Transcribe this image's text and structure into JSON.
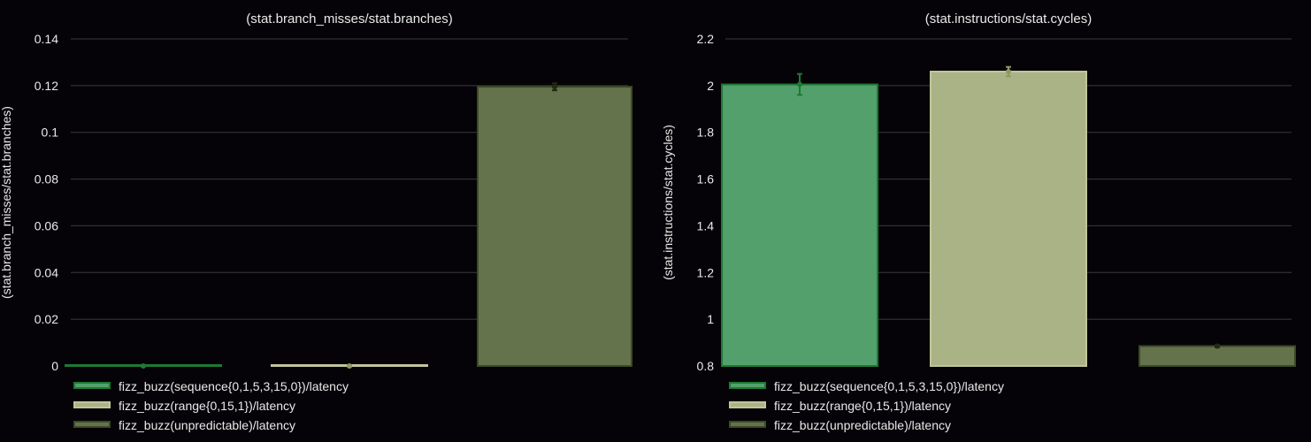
{
  "colors": {
    "background": "#050308",
    "text": "#e9e9e9",
    "grid": "#3a3a3a",
    "series_fill": [
      "#53a06c",
      "#aab386",
      "#65734d"
    ],
    "series_stroke": [
      "#1d7a32",
      "#c2c59a",
      "#3c4a26"
    ],
    "errorbar": [
      "#1d7a32",
      "#8e9a65",
      "#1f2b12"
    ]
  },
  "chart_data": [
    {
      "type": "bar",
      "title": "(stat.branch_misses/stat.branches)",
      "ylabel": "(stat.branch_misses/stat.branches)",
      "xlabel": "",
      "ylim": [
        0,
        0.14
      ],
      "yticks": [
        0,
        0.02,
        0.04,
        0.06,
        0.08,
        0.1,
        0.12,
        0.14
      ],
      "ytick_labels": [
        "0",
        "0.02",
        "0.04",
        "0.06",
        "0.08",
        "0.1",
        "0.12",
        "0.14"
      ],
      "grid": true,
      "legend_position": "bottom-left",
      "series": [
        {
          "name": "fizz_buzz(sequence{0,1,5,3,15,0})/latency",
          "value": 0.0,
          "error": 0.0002
        },
        {
          "name": "fizz_buzz(range{0,15,1})/latency",
          "value": 0.0,
          "error": 0.0002
        },
        {
          "name": "fizz_buzz(unpredictable)/latency",
          "value": 0.1195,
          "error": 0.0015
        }
      ]
    },
    {
      "type": "bar",
      "title": "(stat.instructions/stat.cycles)",
      "ylabel": "(stat.instructions/stat.cycles)",
      "xlabel": "",
      "ylim": [
        0.8,
        2.2
      ],
      "yticks": [
        0.8,
        1.0,
        1.2,
        1.4,
        1.6,
        1.8,
        2.0,
        2.2
      ],
      "ytick_labels": [
        "0.8",
        "1",
        "1.2",
        "1.4",
        "1.6",
        "1.8",
        "2",
        "2.2"
      ],
      "grid": true,
      "legend_position": "bottom-left",
      "series": [
        {
          "name": "fizz_buzz(sequence{0,1,5,3,15,0})/latency",
          "value": 2.005,
          "error": 0.045
        },
        {
          "name": "fizz_buzz(range{0,15,1})/latency",
          "value": 2.06,
          "error": 0.02
        },
        {
          "name": "fizz_buzz(unpredictable)/latency",
          "value": 0.885,
          "error": 0.005
        }
      ]
    }
  ]
}
